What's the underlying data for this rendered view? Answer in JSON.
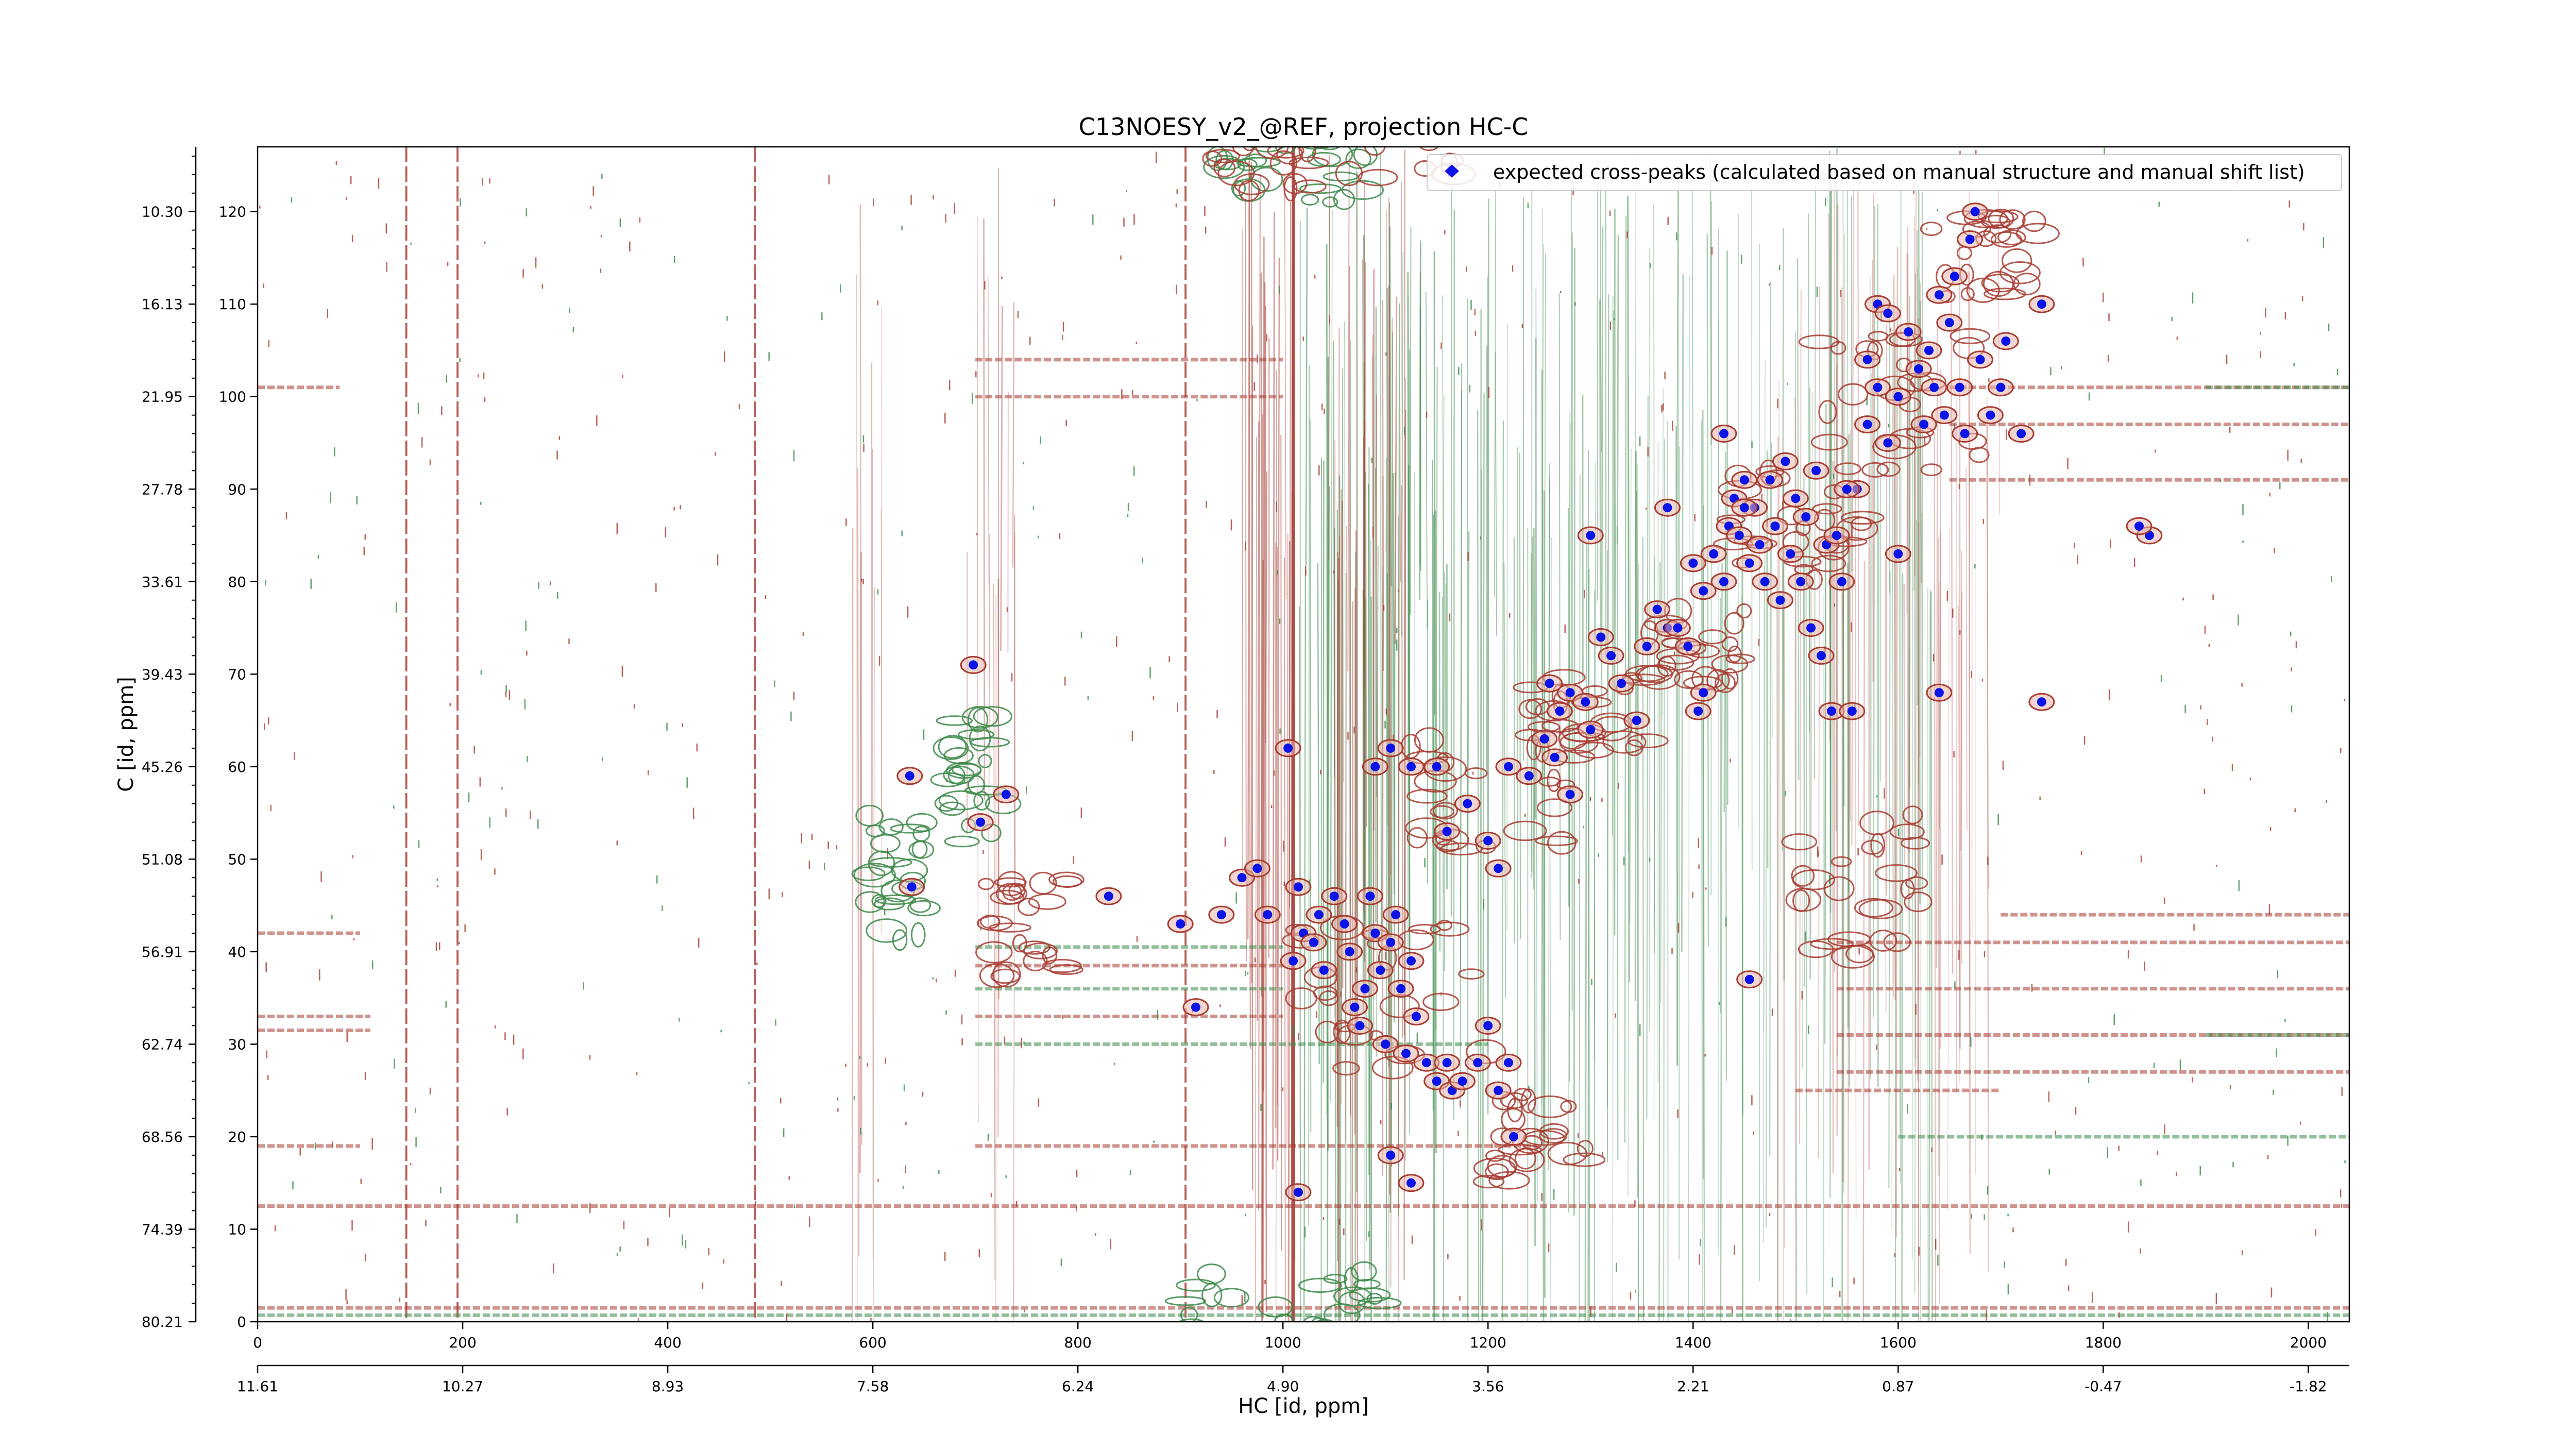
{
  "chart_data": {
    "type": "scatter",
    "title": "C13NOESY_v2_@REF, projection HC-C",
    "xlabel": "HC [id, ppm]",
    "ylabel": "C [id, ppm]",
    "xlim": [
      0,
      2040
    ],
    "ylim": [
      0,
      127
    ],
    "x_ticks": [
      0,
      200,
      400,
      600,
      800,
      1000,
      1200,
      1400,
      1600,
      1800,
      2000
    ],
    "x_ticks_secondary": [
      {
        "pos": 0,
        "label": "11.61"
      },
      {
        "pos": 200,
        "label": "10.27"
      },
      {
        "pos": 400,
        "label": "8.93"
      },
      {
        "pos": 600,
        "label": "7.58"
      },
      {
        "pos": 800,
        "label": "6.24"
      },
      {
        "pos": 1000,
        "label": "4.90"
      },
      {
        "pos": 1200,
        "label": "3.56"
      },
      {
        "pos": 1400,
        "label": "2.21"
      },
      {
        "pos": 1600,
        "label": "0.87"
      },
      {
        "pos": 1800,
        "label": "-0.47"
      },
      {
        "pos": 2000,
        "label": "-1.82"
      }
    ],
    "y_ticks": [
      0,
      10,
      20,
      30,
      40,
      50,
      60,
      70,
      80,
      90,
      100,
      110,
      120
    ],
    "y_ticks_secondary": [
      {
        "pos": 0,
        "label": "80.21"
      },
      {
        "pos": 10,
        "label": "74.39"
      },
      {
        "pos": 20,
        "label": "68.56"
      },
      {
        "pos": 30,
        "label": "62.74"
      },
      {
        "pos": 40,
        "label": "56.91"
      },
      {
        "pos": 50,
        "label": "51.08"
      },
      {
        "pos": 60,
        "label": "45.26"
      },
      {
        "pos": 70,
        "label": "39.43"
      },
      {
        "pos": 80,
        "label": "33.61"
      },
      {
        "pos": 90,
        "label": "27.78"
      },
      {
        "pos": 100,
        "label": "21.95"
      },
      {
        "pos": 110,
        "label": "16.13"
      },
      {
        "pos": 120,
        "label": "10.30"
      }
    ],
    "legend": {
      "location": "top-right",
      "label": "expected cross-peaks (calculated based on manual structure and manual shift list)"
    },
    "colors": {
      "positive_contours": "#a83c32",
      "negative_contours": "#3d8a4a",
      "markers": "#0a14e6"
    },
    "series": [
      {
        "name": "expected cross-peaks (calculated based on manual structure and manual shift list)",
        "marker": "circle",
        "points": [
          [
            698,
            71
          ],
          [
            636,
            59
          ],
          [
            705,
            54
          ],
          [
            638,
            47
          ],
          [
            730,
            57
          ],
          [
            830,
            46
          ],
          [
            900,
            43
          ],
          [
            915,
            34
          ],
          [
            940,
            44
          ],
          [
            960,
            48
          ],
          [
            975,
            49
          ],
          [
            985,
            44
          ],
          [
            1005,
            62
          ],
          [
            1010,
            39
          ],
          [
            1015,
            47
          ],
          [
            1020,
            42
          ],
          [
            1030,
            41
          ],
          [
            1035,
            44
          ],
          [
            1040,
            38
          ],
          [
            1050,
            46
          ],
          [
            1060,
            43
          ],
          [
            1065,
            40
          ],
          [
            1070,
            34
          ],
          [
            1075,
            32
          ],
          [
            1080,
            36
          ],
          [
            1085,
            46
          ],
          [
            1090,
            42
          ],
          [
            1095,
            38
          ],
          [
            1100,
            30
          ],
          [
            1105,
            41
          ],
          [
            1110,
            44
          ],
          [
            1115,
            36
          ],
          [
            1120,
            29
          ],
          [
            1125,
            39
          ],
          [
            1130,
            33
          ],
          [
            1140,
            28
          ],
          [
            1150,
            26
          ],
          [
            1160,
            28
          ],
          [
            1165,
            25
          ],
          [
            1175,
            26
          ],
          [
            1190,
            28
          ],
          [
            1200,
            32
          ],
          [
            1210,
            25
          ],
          [
            1220,
            28
          ],
          [
            1225,
            20
          ],
          [
            1105,
            18
          ],
          [
            1125,
            15
          ],
          [
            1015,
            14
          ],
          [
            1090,
            60
          ],
          [
            1105,
            62
          ],
          [
            1125,
            60
          ],
          [
            1150,
            60
          ],
          [
            1160,
            53
          ],
          [
            1180,
            56
          ],
          [
            1200,
            52
          ],
          [
            1210,
            49
          ],
          [
            1220,
            60
          ],
          [
            1240,
            59
          ],
          [
            1255,
            63
          ],
          [
            1270,
            66
          ],
          [
            1280,
            68
          ],
          [
            1295,
            67
          ],
          [
            1300,
            64
          ],
          [
            1310,
            74
          ],
          [
            1320,
            72
          ],
          [
            1330,
            69
          ],
          [
            1345,
            65
          ],
          [
            1355,
            73
          ],
          [
            1365,
            77
          ],
          [
            1375,
            75
          ],
          [
            1385,
            75
          ],
          [
            1395,
            73
          ],
          [
            1405,
            66
          ],
          [
            1410,
            68
          ],
          [
            1300,
            85
          ],
          [
            1265,
            61
          ],
          [
            1260,
            69
          ],
          [
            1280,
            57
          ],
          [
            1375,
            88
          ],
          [
            1400,
            82
          ],
          [
            1410,
            79
          ],
          [
            1420,
            83
          ],
          [
            1430,
            80
          ],
          [
            1435,
            86
          ],
          [
            1440,
            89
          ],
          [
            1445,
            85
          ],
          [
            1450,
            91
          ],
          [
            1455,
            82
          ],
          [
            1460,
            88
          ],
          [
            1465,
            84
          ],
          [
            1470,
            80
          ],
          [
            1475,
            91
          ],
          [
            1480,
            86
          ],
          [
            1485,
            78
          ],
          [
            1490,
            93
          ],
          [
            1495,
            83
          ],
          [
            1500,
            89
          ],
          [
            1505,
            80
          ],
          [
            1510,
            87
          ],
          [
            1515,
            75
          ],
          [
            1520,
            92
          ],
          [
            1525,
            72
          ],
          [
            1530,
            84
          ],
          [
            1535,
            66
          ],
          [
            1545,
            80
          ],
          [
            1555,
            66
          ],
          [
            1560,
            90
          ],
          [
            1570,
            97
          ],
          [
            1580,
            101
          ],
          [
            1590,
            95
          ],
          [
            1600,
            100
          ],
          [
            1610,
            107
          ],
          [
            1620,
            103
          ],
          [
            1625,
            97
          ],
          [
            1630,
            105
          ],
          [
            1635,
            101
          ],
          [
            1640,
            111
          ],
          [
            1645,
            98
          ],
          [
            1650,
            108
          ],
          [
            1655,
            113
          ],
          [
            1660,
            101
          ],
          [
            1665,
            96
          ],
          [
            1670,
            117
          ],
          [
            1675,
            120
          ],
          [
            1680,
            104
          ],
          [
            1690,
            98
          ],
          [
            1700,
            101
          ],
          [
            1705,
            106
          ],
          [
            1720,
            96
          ],
          [
            1740,
            110
          ],
          [
            1580,
            110
          ],
          [
            1550,
            90
          ],
          [
            1540,
            85
          ],
          [
            1600,
            83
          ],
          [
            1640,
            68
          ],
          [
            1740,
            67
          ],
          [
            1845,
            85
          ],
          [
            1835,
            86
          ],
          [
            1455,
            37
          ],
          [
            1450,
            88
          ],
          [
            1430,
            96
          ],
          [
            1570,
            104
          ],
          [
            1590,
            109
          ]
        ]
      }
    ]
  }
}
